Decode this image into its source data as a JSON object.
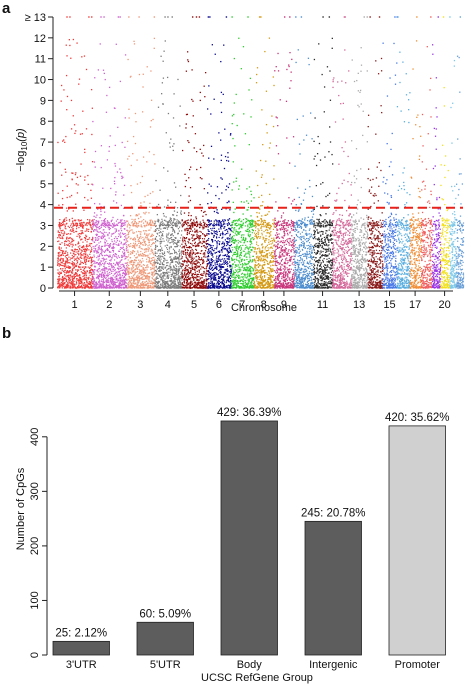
{
  "panel_a": {
    "letter": "a"
  },
  "panel_b": {
    "letter": "b"
  },
  "chart_data": [
    {
      "type": "scatter",
      "title": "",
      "xlabel": "Chromosome",
      "ylabel_prefix": "−log",
      "ylabel_sub": "10",
      "ylabel_suffix": "(p)",
      "ylim": [
        0,
        13
      ],
      "yticks": [
        "0",
        "1",
        "2",
        "3",
        "4",
        "5",
        "6",
        "7",
        "8",
        "9",
        "10",
        "11",
        "12",
        "≥ 13"
      ],
      "xtick_labels": [
        "1",
        "2",
        "3",
        "4",
        "5",
        "6",
        "7",
        "8",
        "9",
        "11",
        "13",
        "15",
        "17",
        "20"
      ],
      "threshold": 3.85,
      "threshold_color": "#e8221b",
      "grid": false,
      "chromosomes": [
        {
          "chr": "1",
          "color": "#ef3a3a"
        },
        {
          "chr": "2",
          "color": "#cf63cf"
        },
        {
          "chr": "3",
          "color": "#ee9a7a"
        },
        {
          "chr": "4",
          "color": "#7b7b7b"
        },
        {
          "chr": "5",
          "color": "#8f0b0b"
        },
        {
          "chr": "6",
          "color": "#0a0a8f"
        },
        {
          "chr": "7",
          "color": "#2fcc2f"
        },
        {
          "chr": "8",
          "color": "#d49a16"
        },
        {
          "chr": "9",
          "color": "#c8357a"
        },
        {
          "chr": "10",
          "color": "#4f8fcf"
        },
        {
          "chr": "11",
          "color": "#2b2b2b"
        },
        {
          "chr": "12",
          "color": "#d4699a"
        },
        {
          "chr": "13",
          "color": "#ababab"
        },
        {
          "chr": "14",
          "color": "#8a1a1a"
        },
        {
          "chr": "15",
          "color": "#4a7ae6"
        },
        {
          "chr": "16",
          "color": "#5aaee0"
        },
        {
          "chr": "17",
          "color": "#f08f38"
        },
        {
          "chr": "18",
          "color": "#f05f5f"
        },
        {
          "chr": "19",
          "color": "#9a35e6"
        },
        {
          "chr": "20",
          "color": "#f2e020"
        },
        {
          "chr": "21",
          "color": "#7ec8e8"
        },
        {
          "chr": "22",
          "color": "#6a9fd8"
        }
      ]
    },
    {
      "type": "bar",
      "title": "",
      "xlabel": "UCSC RefGene Group",
      "ylabel": "Number of CpGs",
      "ylim": [
        0,
        430
      ],
      "yticks": [
        "0",
        "100",
        "200",
        "300",
        "400"
      ],
      "categories": [
        "3'UTR",
        "5'UTR",
        "Body",
        "Intergenic",
        "Promoter"
      ],
      "values": [
        25,
        60,
        429,
        245,
        420
      ],
      "bar_labels": [
        "25: 2.12%",
        "60: 5.09%",
        "429: 36.39%",
        "245: 20.78%",
        "420: 35.62%"
      ],
      "bar_colors": [
        "#5d5d5d",
        "#5d5d5d",
        "#5d5d5d",
        "#5d5d5d",
        "#d0d0d0"
      ],
      "grid": false
    }
  ]
}
